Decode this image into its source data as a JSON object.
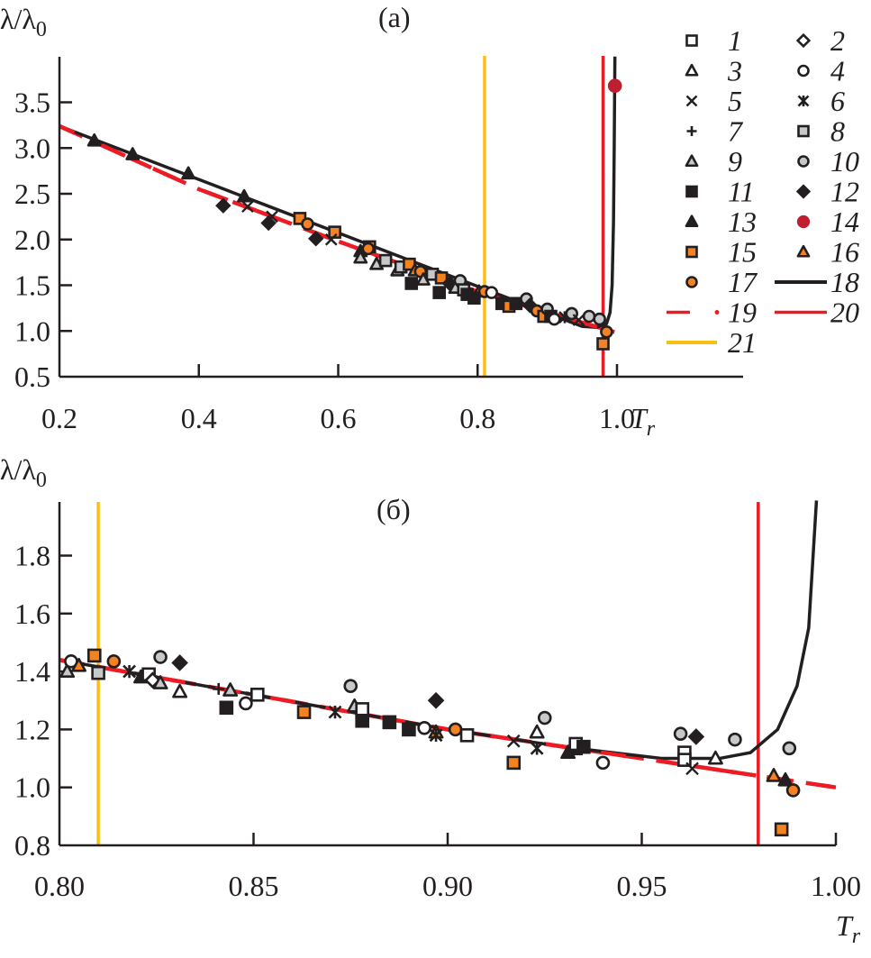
{
  "chart_data": [
    {
      "type": "scatter",
      "panel_label": "(a)",
      "ylabel": "λ/λ₀",
      "ylabel_main": "λ/λ",
      "ylabel_sub": "0",
      "xlabel_main": "T",
      "xlabel_sub": "r",
      "xlim": [
        0.2,
        1.15
      ],
      "ylim": [
        0.5,
        4.0
      ],
      "xticks": [
        0.2,
        0.4,
        0.6,
        0.8,
        1.0
      ],
      "xtick_labels": [
        "0.2",
        "0.4",
        "0.6",
        "0.8",
        "1.0"
      ],
      "yticks": [
        0.5,
        1.0,
        1.5,
        2.0,
        2.5,
        3.0,
        3.5
      ],
      "ytick_labels": [
        "0.5",
        "1.0",
        "1.5",
        "2.0",
        "2.5",
        "3.0",
        "3.5"
      ],
      "grid": false,
      "vlines": [
        {
          "series": "21",
          "x": 0.81,
          "color": "#fbbf14"
        },
        {
          "series": "20",
          "x": 0.98,
          "color": "#ed1c24"
        }
      ],
      "curves": {
        "fit_black": {
          "series": "18",
          "color": "#231f20",
          "linear": [
            [
              0.2,
              3.24
            ],
            [
              0.95,
              1.05
            ]
          ],
          "divergence_at": 1.0
        },
        "fit_red_dashed": {
          "series": "19",
          "color": "#ed1c24",
          "points": [
            [
              0.2,
              3.24
            ],
            [
              0.4,
              2.55
            ],
            [
              0.6,
              1.98
            ],
            [
              0.8,
              1.43
            ],
            [
              1.0,
              0.98
            ]
          ]
        }
      },
      "points": [
        {
          "s": "13",
          "x": 0.25,
          "y": 3.08
        },
        {
          "s": "13",
          "x": 0.305,
          "y": 2.93
        },
        {
          "s": "13",
          "x": 0.385,
          "y": 2.72
        },
        {
          "s": "13",
          "x": 0.465,
          "y": 2.47
        },
        {
          "s": "12",
          "x": 0.435,
          "y": 2.37
        },
        {
          "s": "5",
          "x": 0.47,
          "y": 2.36
        },
        {
          "s": "12",
          "x": 0.5,
          "y": 2.18
        },
        {
          "s": "5",
          "x": 0.505,
          "y": 2.25
        },
        {
          "s": "15",
          "x": 0.545,
          "y": 2.23
        },
        {
          "s": "17",
          "x": 0.556,
          "y": 2.17
        },
        {
          "s": "12",
          "x": 0.568,
          "y": 2.01
        },
        {
          "s": "15",
          "x": 0.595,
          "y": 2.08
        },
        {
          "s": "5",
          "x": 0.59,
          "y": 2.0
        },
        {
          "s": "13",
          "x": 0.632,
          "y": 1.87
        },
        {
          "s": "15",
          "x": 0.645,
          "y": 1.92
        },
        {
          "s": "17",
          "x": 0.643,
          "y": 1.9
        },
        {
          "s": "9",
          "x": 0.632,
          "y": 1.8
        },
        {
          "s": "9",
          "x": 0.655,
          "y": 1.73
        },
        {
          "s": "8",
          "x": 0.668,
          "y": 1.77
        },
        {
          "s": "9",
          "x": 0.685,
          "y": 1.66
        },
        {
          "s": "8",
          "x": 0.69,
          "y": 1.7
        },
        {
          "s": "15",
          "x": 0.702,
          "y": 1.73
        },
        {
          "s": "11",
          "x": 0.705,
          "y": 1.52
        },
        {
          "s": "16",
          "x": 0.71,
          "y": 1.66
        },
        {
          "s": "17",
          "x": 0.718,
          "y": 1.65
        },
        {
          "s": "9",
          "x": 0.722,
          "y": 1.56
        },
        {
          "s": "8",
          "x": 0.735,
          "y": 1.62
        },
        {
          "s": "15",
          "x": 0.748,
          "y": 1.58
        },
        {
          "s": "11",
          "x": 0.745,
          "y": 1.42
        },
        {
          "s": "12",
          "x": 0.76,
          "y": 1.52
        },
        {
          "s": "9",
          "x": 0.768,
          "y": 1.47
        },
        {
          "s": "10",
          "x": 0.775,
          "y": 1.55
        },
        {
          "s": "8",
          "x": 0.78,
          "y": 1.45
        },
        {
          "s": "11",
          "x": 0.785,
          "y": 1.4
        },
        {
          "s": "16",
          "x": 0.802,
          "y": 1.43
        },
        {
          "s": "17",
          "x": 0.81,
          "y": 1.43
        },
        {
          "s": "11",
          "x": 0.795,
          "y": 1.36
        },
        {
          "s": "4",
          "x": 0.82,
          "y": 1.42
        },
        {
          "s": "11",
          "x": 0.835,
          "y": 1.3
        },
        {
          "s": "15",
          "x": 0.845,
          "y": 1.27
        },
        {
          "s": "11",
          "x": 0.855,
          "y": 1.3
        },
        {
          "s": "10",
          "x": 0.87,
          "y": 1.35
        },
        {
          "s": "12",
          "x": 0.875,
          "y": 1.28
        },
        {
          "s": "17",
          "x": 0.885,
          "y": 1.22
        },
        {
          "s": "15",
          "x": 0.895,
          "y": 1.16
        },
        {
          "s": "10",
          "x": 0.9,
          "y": 1.24
        },
        {
          "s": "11",
          "x": 0.905,
          "y": 1.16
        },
        {
          "s": "4",
          "x": 0.91,
          "y": 1.13
        },
        {
          "s": "6",
          "x": 0.925,
          "y": 1.15
        },
        {
          "s": "10",
          "x": 0.935,
          "y": 1.19
        },
        {
          "s": "10",
          "x": 0.96,
          "y": 1.16
        },
        {
          "s": "5",
          "x": 0.945,
          "y": 1.12
        },
        {
          "s": "10",
          "x": 0.975,
          "y": 1.13
        },
        {
          "s": "17",
          "x": 0.985,
          "y": 0.99
        },
        {
          "s": "15",
          "x": 0.98,
          "y": 0.86
        },
        {
          "s": "14",
          "x": 0.997,
          "y": 3.68
        }
      ]
    },
    {
      "type": "scatter",
      "panel_label": "(б)",
      "ylabel": "λ/λ₀",
      "ylabel_main": "λ/λ",
      "ylabel_sub": "0",
      "xlabel_main": "T",
      "xlabel_sub": "r",
      "xlim": [
        0.8,
        1.0
      ],
      "ylim": [
        0.8,
        2.0
      ],
      "xticks": [
        0.8,
        0.85,
        0.9,
        0.95,
        1.0
      ],
      "xtick_labels": [
        "0.80",
        "0.85",
        "0.90",
        "0.95",
        "1.00"
      ],
      "yticks": [
        0.8,
        1.0,
        1.2,
        1.4,
        1.6,
        1.8
      ],
      "ytick_labels": [
        "0.8",
        "1.0",
        "1.2",
        "1.4",
        "1.6",
        "1.8"
      ],
      "grid": false,
      "vlines": [
        {
          "series": "21",
          "x": 0.81,
          "color": "#fbbf14"
        },
        {
          "series": "20",
          "x": 0.98,
          "color": "#ed1c24"
        }
      ],
      "curves": {
        "fit_black": {
          "series": "18",
          "color": "#231f20",
          "points": [
            [
              0.8,
              1.44
            ],
            [
              0.85,
              1.32
            ],
            [
              0.9,
              1.2
            ],
            [
              0.93,
              1.14
            ],
            [
              0.955,
              1.1
            ],
            [
              0.97,
              1.1
            ],
            [
              0.978,
              1.12
            ],
            [
              0.985,
              1.2
            ],
            [
              0.99,
              1.35
            ],
            [
              0.993,
              1.55
            ],
            [
              0.995,
              1.99
            ]
          ]
        },
        "fit_red_dashed": {
          "series": "19",
          "color": "#ed1c24",
          "points": [
            [
              0.8,
              1.44
            ],
            [
              0.85,
              1.32
            ],
            [
              0.9,
              1.2
            ],
            [
              0.95,
              1.1
            ],
            [
              1.0,
              1.0
            ]
          ]
        }
      },
      "points": [
        {
          "s": "9",
          "x": 0.802,
          "y": 1.4
        },
        {
          "s": "4",
          "x": 0.803,
          "y": 1.435
        },
        {
          "s": "16",
          "x": 0.805,
          "y": 1.42
        },
        {
          "s": "15",
          "x": 0.809,
          "y": 1.455
        },
        {
          "s": "8",
          "x": 0.81,
          "y": 1.395
        },
        {
          "s": "17",
          "x": 0.814,
          "y": 1.435
        },
        {
          "s": "6",
          "x": 0.818,
          "y": 1.4
        },
        {
          "s": "13",
          "x": 0.821,
          "y": 1.38
        },
        {
          "s": "1",
          "x": 0.823,
          "y": 1.39
        },
        {
          "s": "2",
          "x": 0.824,
          "y": 1.37
        },
        {
          "s": "9",
          "x": 0.826,
          "y": 1.36
        },
        {
          "s": "10",
          "x": 0.826,
          "y": 1.45
        },
        {
          "s": "12",
          "x": 0.831,
          "y": 1.43
        },
        {
          "s": "3",
          "x": 0.831,
          "y": 1.33
        },
        {
          "s": "7",
          "x": 0.841,
          "y": 1.34
        },
        {
          "s": "9",
          "x": 0.844,
          "y": 1.335
        },
        {
          "s": "11",
          "x": 0.843,
          "y": 1.275
        },
        {
          "s": "4",
          "x": 0.848,
          "y": 1.29
        },
        {
          "s": "1",
          "x": 0.851,
          "y": 1.32
        },
        {
          "s": "15",
          "x": 0.863,
          "y": 1.26
        },
        {
          "s": "6",
          "x": 0.871,
          "y": 1.26
        },
        {
          "s": "10",
          "x": 0.875,
          "y": 1.35
        },
        {
          "s": "9",
          "x": 0.876,
          "y": 1.28
        },
        {
          "s": "1",
          "x": 0.878,
          "y": 1.27
        },
        {
          "s": "11",
          "x": 0.878,
          "y": 1.23
        },
        {
          "s": "11",
          "x": 0.885,
          "y": 1.225
        },
        {
          "s": "11",
          "x": 0.89,
          "y": 1.2
        },
        {
          "s": "4",
          "x": 0.894,
          "y": 1.205
        },
        {
          "s": "12",
          "x": 0.897,
          "y": 1.3
        },
        {
          "s": "16",
          "x": 0.897,
          "y": 1.19
        },
        {
          "s": "6",
          "x": 0.897,
          "y": 1.18
        },
        {
          "s": "17",
          "x": 0.902,
          "y": 1.2
        },
        {
          "s": "1",
          "x": 0.905,
          "y": 1.18
        },
        {
          "s": "5",
          "x": 0.917,
          "y": 1.16
        },
        {
          "s": "15",
          "x": 0.917,
          "y": 1.085
        },
        {
          "s": "3",
          "x": 0.923,
          "y": 1.19
        },
        {
          "s": "6",
          "x": 0.923,
          "y": 1.135
        },
        {
          "s": "10",
          "x": 0.925,
          "y": 1.24
        },
        {
          "s": "13",
          "x": 0.931,
          "y": 1.12
        },
        {
          "s": "11",
          "x": 0.933,
          "y": 1.135
        },
        {
          "s": "1",
          "x": 0.933,
          "y": 1.15
        },
        {
          "s": "11",
          "x": 0.935,
          "y": 1.14
        },
        {
          "s": "4",
          "x": 0.94,
          "y": 1.085
        },
        {
          "s": "10",
          "x": 0.96,
          "y": 1.185
        },
        {
          "s": "1",
          "x": 0.961,
          "y": 1.12
        },
        {
          "s": "1",
          "x": 0.961,
          "y": 1.095
        },
        {
          "s": "12",
          "x": 0.964,
          "y": 1.175
        },
        {
          "s": "5",
          "x": 0.963,
          "y": 1.065
        },
        {
          "s": "3",
          "x": 0.969,
          "y": 1.1
        },
        {
          "s": "10",
          "x": 0.974,
          "y": 1.165
        },
        {
          "s": "16",
          "x": 0.984,
          "y": 1.04
        },
        {
          "s": "13",
          "x": 0.987,
          "y": 1.025
        },
        {
          "s": "10",
          "x": 0.988,
          "y": 1.135
        },
        {
          "s": "17",
          "x": 0.989,
          "y": 0.99
        },
        {
          "s": "15",
          "x": 0.986,
          "y": 0.855
        }
      ]
    }
  ],
  "legend": {
    "placement": "top-right of panel (a)",
    "entries": [
      {
        "id": "1",
        "label": "1",
        "marker": "square",
        "fill": "#ffffff",
        "stroke": "#231f20"
      },
      {
        "id": "2",
        "label": "2",
        "marker": "diamond",
        "fill": "#ffffff",
        "stroke": "#231f20"
      },
      {
        "id": "3",
        "label": "3",
        "marker": "triangle",
        "fill": "#ffffff",
        "stroke": "#231f20"
      },
      {
        "id": "4",
        "label": "4",
        "marker": "circle",
        "fill": "#ffffff",
        "stroke": "#231f20"
      },
      {
        "id": "5",
        "label": "5",
        "marker": "x",
        "fill": "none",
        "stroke": "#231f20"
      },
      {
        "id": "6",
        "label": "6",
        "marker": "asterisk",
        "fill": "none",
        "stroke": "#231f20"
      },
      {
        "id": "7",
        "label": "7",
        "marker": "plus",
        "fill": "none",
        "stroke": "#231f20"
      },
      {
        "id": "8",
        "label": "8",
        "marker": "square",
        "fill": "#c7c8ca",
        "stroke": "#231f20"
      },
      {
        "id": "9",
        "label": "9",
        "marker": "triangle",
        "fill": "#c7c8ca",
        "stroke": "#231f20"
      },
      {
        "id": "10",
        "label": "10",
        "marker": "circle",
        "fill": "#c7c8ca",
        "stroke": "#231f20"
      },
      {
        "id": "11",
        "label": "11",
        "marker": "square",
        "fill": "#231f20",
        "stroke": "#231f20"
      },
      {
        "id": "12",
        "label": "12",
        "marker": "diamond",
        "fill": "#231f20",
        "stroke": "#231f20"
      },
      {
        "id": "13",
        "label": "13",
        "marker": "triangle",
        "fill": "#231f20",
        "stroke": "#231f20"
      },
      {
        "id": "14",
        "label": "14",
        "marker": "dot",
        "fill": "#be1e2d",
        "stroke": "#be1e2d"
      },
      {
        "id": "15",
        "label": "15",
        "marker": "square",
        "fill": "#f58220",
        "stroke": "#231f20"
      },
      {
        "id": "16",
        "label": "16",
        "marker": "triangle",
        "fill": "#f58220",
        "stroke": "#231f20"
      },
      {
        "id": "17",
        "label": "17",
        "marker": "circle",
        "fill": "#f58220",
        "stroke": "#231f20"
      },
      {
        "id": "18",
        "label": "18",
        "marker": "line-solid",
        "stroke": "#231f20"
      },
      {
        "id": "19",
        "label": "19",
        "marker": "line-dashdot",
        "stroke": "#ed1c24"
      },
      {
        "id": "20",
        "label": "20",
        "marker": "line-solid",
        "stroke": "#ed1c24"
      },
      {
        "id": "21",
        "label": "21",
        "marker": "line-solid",
        "stroke": "#fbbf14"
      }
    ]
  }
}
